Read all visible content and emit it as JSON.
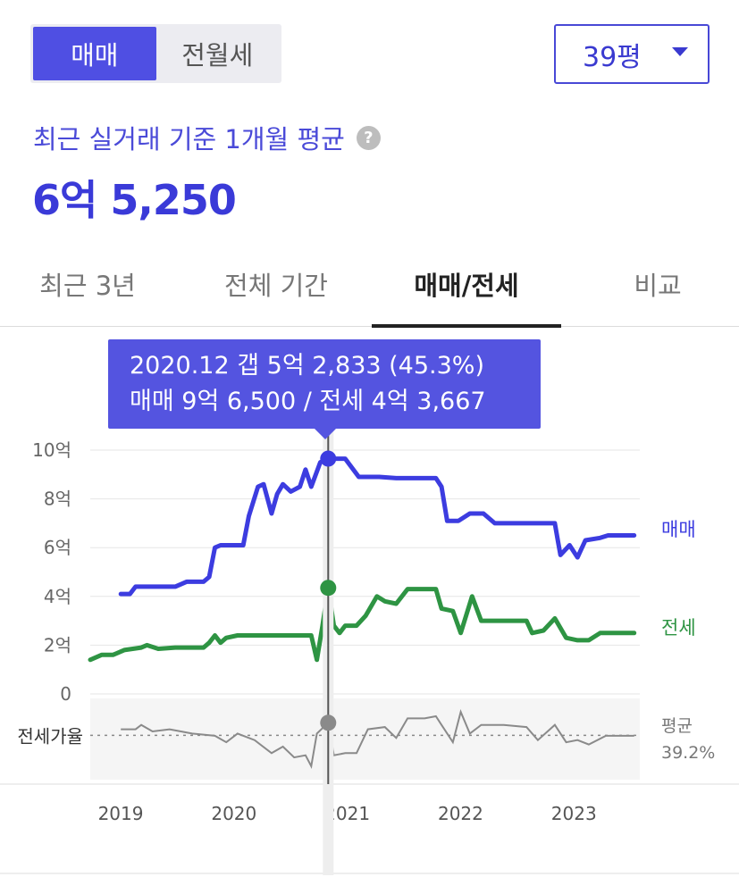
{
  "trade_toggle": {
    "options": [
      "매매",
      "전월세"
    ],
    "selected": "매매"
  },
  "size_select": {
    "value": "39평"
  },
  "summary": {
    "label": "최근 실거래 기준 1개월 평균",
    "value": "6억 5,250"
  },
  "tabs": [
    {
      "label": "최근 3년",
      "active": false
    },
    {
      "label": "전체 기간",
      "active": false
    },
    {
      "label": "매매/전세",
      "active": true
    },
    {
      "label": "비교",
      "active": false
    }
  ],
  "tooltip": {
    "line1": "2020.12  갭 5억 2,833 (45.3%)",
    "line2": "매매 9억 6,500 / 전세 4억 3,667"
  },
  "colors": {
    "accent": "#4f4fe3",
    "sale": "#3c3ce0",
    "jeonse": "#2e9443",
    "ratio": "#8a8a8a"
  },
  "chart_data": {
    "type": "line",
    "x_unit": "year",
    "xlim": [
      2018.85,
      2023.7
    ],
    "ylim": [
      0,
      10
    ],
    "y_ticks": [
      {
        "value": 0,
        "label": "0"
      },
      {
        "value": 2,
        "label": "2억"
      },
      {
        "value": 4,
        "label": "4억"
      },
      {
        "value": 6,
        "label": "6억"
      },
      {
        "value": 8,
        "label": "8억"
      },
      {
        "value": 10,
        "label": "10억"
      }
    ],
    "x_ticks": [
      {
        "value": 2019,
        "label": "2019"
      },
      {
        "value": 2020,
        "label": "2020"
      },
      {
        "value": 2021,
        "label": "2021"
      },
      {
        "value": 2022,
        "label": "2022"
      },
      {
        "value": 2023,
        "label": "2023"
      }
    ],
    "grid": true,
    "cursor_x": 2020.95,
    "series": [
      {
        "name": "매매",
        "points": [
          [
            2019.12,
            4.1
          ],
          [
            2019.2,
            4.1
          ],
          [
            2019.25,
            4.4
          ],
          [
            2019.3,
            4.4
          ],
          [
            2019.4,
            4.4
          ],
          [
            2019.6,
            4.4
          ],
          [
            2019.7,
            4.6
          ],
          [
            2019.85,
            4.6
          ],
          [
            2019.9,
            4.8
          ],
          [
            2019.95,
            6.0
          ],
          [
            2020.0,
            6.1
          ],
          [
            2020.2,
            6.1
          ],
          [
            2020.25,
            7.3
          ],
          [
            2020.33,
            8.5
          ],
          [
            2020.38,
            8.6
          ],
          [
            2020.45,
            7.4
          ],
          [
            2020.5,
            8.2
          ],
          [
            2020.55,
            8.6
          ],
          [
            2020.62,
            8.3
          ],
          [
            2020.7,
            8.5
          ],
          [
            2020.75,
            9.2
          ],
          [
            2020.8,
            8.5
          ],
          [
            2020.88,
            9.5
          ],
          [
            2020.95,
            9.65
          ],
          [
            2021.1,
            9.65
          ],
          [
            2021.22,
            8.9
          ],
          [
            2021.4,
            8.9
          ],
          [
            2021.55,
            8.85
          ],
          [
            2021.9,
            8.85
          ],
          [
            2021.95,
            8.5
          ],
          [
            2022.0,
            7.1
          ],
          [
            2022.1,
            7.1
          ],
          [
            2022.2,
            7.4
          ],
          [
            2022.32,
            7.4
          ],
          [
            2022.42,
            7.0
          ],
          [
            2022.6,
            7.0
          ],
          [
            2022.95,
            7.0
          ],
          [
            2022.98,
            6.2
          ],
          [
            2023.0,
            5.7
          ],
          [
            2023.08,
            6.1
          ],
          [
            2023.15,
            5.6
          ],
          [
            2023.22,
            6.3
          ],
          [
            2023.35,
            6.4
          ],
          [
            2023.42,
            6.5
          ],
          [
            2023.65,
            6.5
          ]
        ],
        "label": "매매"
      },
      {
        "name": "전세",
        "points": [
          [
            2018.85,
            1.4
          ],
          [
            2018.95,
            1.6
          ],
          [
            2019.05,
            1.6
          ],
          [
            2019.15,
            1.8
          ],
          [
            2019.3,
            1.9
          ],
          [
            2019.35,
            2.0
          ],
          [
            2019.45,
            1.85
          ],
          [
            2019.6,
            1.9
          ],
          [
            2019.85,
            1.9
          ],
          [
            2019.9,
            2.1
          ],
          [
            2019.95,
            2.4
          ],
          [
            2020.0,
            2.1
          ],
          [
            2020.05,
            2.3
          ],
          [
            2020.15,
            2.4
          ],
          [
            2020.3,
            2.4
          ],
          [
            2020.5,
            2.4
          ],
          [
            2020.8,
            2.4
          ],
          [
            2020.85,
            1.4
          ],
          [
            2020.9,
            2.8
          ],
          [
            2020.95,
            4.35
          ],
          [
            2021.0,
            2.8
          ],
          [
            2021.05,
            2.5
          ],
          [
            2021.1,
            2.8
          ],
          [
            2021.2,
            2.8
          ],
          [
            2021.28,
            3.2
          ],
          [
            2021.38,
            4.0
          ],
          [
            2021.45,
            3.8
          ],
          [
            2021.55,
            3.7
          ],
          [
            2021.65,
            4.3
          ],
          [
            2021.8,
            4.3
          ],
          [
            2021.9,
            4.3
          ],
          [
            2021.95,
            3.5
          ],
          [
            2022.05,
            3.4
          ],
          [
            2022.12,
            2.5
          ],
          [
            2022.22,
            4.0
          ],
          [
            2022.3,
            3.0
          ],
          [
            2022.45,
            3.0
          ],
          [
            2022.7,
            3.0
          ],
          [
            2022.75,
            2.5
          ],
          [
            2022.85,
            2.6
          ],
          [
            2022.95,
            3.1
          ],
          [
            2023.05,
            2.3
          ],
          [
            2023.15,
            2.2
          ],
          [
            2023.25,
            2.2
          ],
          [
            2023.35,
            2.5
          ],
          [
            2023.45,
            2.5
          ],
          [
            2023.65,
            2.5
          ]
        ],
        "label": "전세"
      }
    ],
    "ratio_panel": {
      "label": "전세가율",
      "average_label": "평균",
      "average_value": "39.2%",
      "average": 39.2,
      "ylim": [
        20,
        55
      ],
      "points": [
        [
          2019.12,
          42
        ],
        [
          2019.25,
          42
        ],
        [
          2019.3,
          44
        ],
        [
          2019.4,
          41
        ],
        [
          2019.55,
          42
        ],
        [
          2019.75,
          40
        ],
        [
          2019.95,
          39
        ],
        [
          2020.05,
          36
        ],
        [
          2020.15,
          40
        ],
        [
          2020.3,
          37
        ],
        [
          2020.45,
          31
        ],
        [
          2020.55,
          34
        ],
        [
          2020.65,
          29
        ],
        [
          2020.75,
          30
        ],
        [
          2020.8,
          25
        ],
        [
          2020.85,
          40
        ],
        [
          2020.95,
          45
        ],
        [
          2021.0,
          30
        ],
        [
          2021.1,
          31
        ],
        [
          2021.2,
          31
        ],
        [
          2021.3,
          42
        ],
        [
          2021.45,
          43
        ],
        [
          2021.55,
          38
        ],
        [
          2021.65,
          47
        ],
        [
          2021.8,
          47
        ],
        [
          2021.9,
          48
        ],
        [
          2021.95,
          44
        ],
        [
          2022.05,
          36
        ],
        [
          2022.12,
          50
        ],
        [
          2022.2,
          40
        ],
        [
          2022.3,
          44
        ],
        [
          2022.5,
          44
        ],
        [
          2022.7,
          43
        ],
        [
          2022.8,
          37
        ],
        [
          2022.95,
          44
        ],
        [
          2023.05,
          36
        ],
        [
          2023.15,
          37
        ],
        [
          2023.25,
          35
        ],
        [
          2023.4,
          39
        ],
        [
          2023.65,
          39
        ]
      ]
    }
  }
}
